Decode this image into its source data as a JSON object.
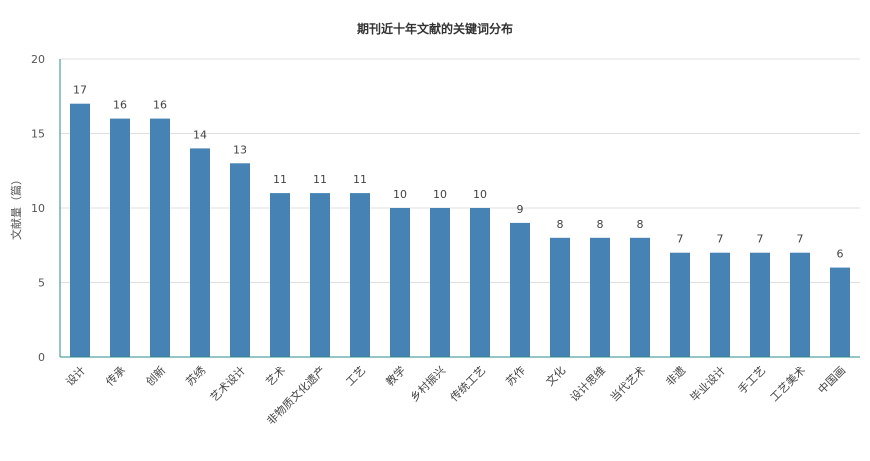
{
  "chart_data": {
    "type": "bar",
    "title": "期刊近十年文献的关键词分布",
    "ylabel": "文献量（篇）",
    "xlabel": "",
    "ylim": [
      0,
      20
    ],
    "yticks": [
      0,
      5,
      10,
      15,
      20
    ],
    "grid": true,
    "categories": [
      "设计",
      "传承",
      "创新",
      "苏绣",
      "艺术设计",
      "艺术",
      "非物质文化遗产",
      "工艺",
      "教学",
      "乡村振兴",
      "传统工艺",
      "苏作",
      "文化",
      "设计思维",
      "当代艺术",
      "非遗",
      "毕业设计",
      "手工艺",
      "工艺美术",
      "中国画"
    ],
    "values": [
      17,
      16,
      16,
      14,
      13,
      11,
      11,
      11,
      10,
      10,
      10,
      9,
      8,
      8,
      8,
      7,
      7,
      7,
      7,
      6
    ],
    "colors": {
      "bar": "#4682b4",
      "axis": "#2e8b8b",
      "grid": "#e0e0e0"
    }
  }
}
